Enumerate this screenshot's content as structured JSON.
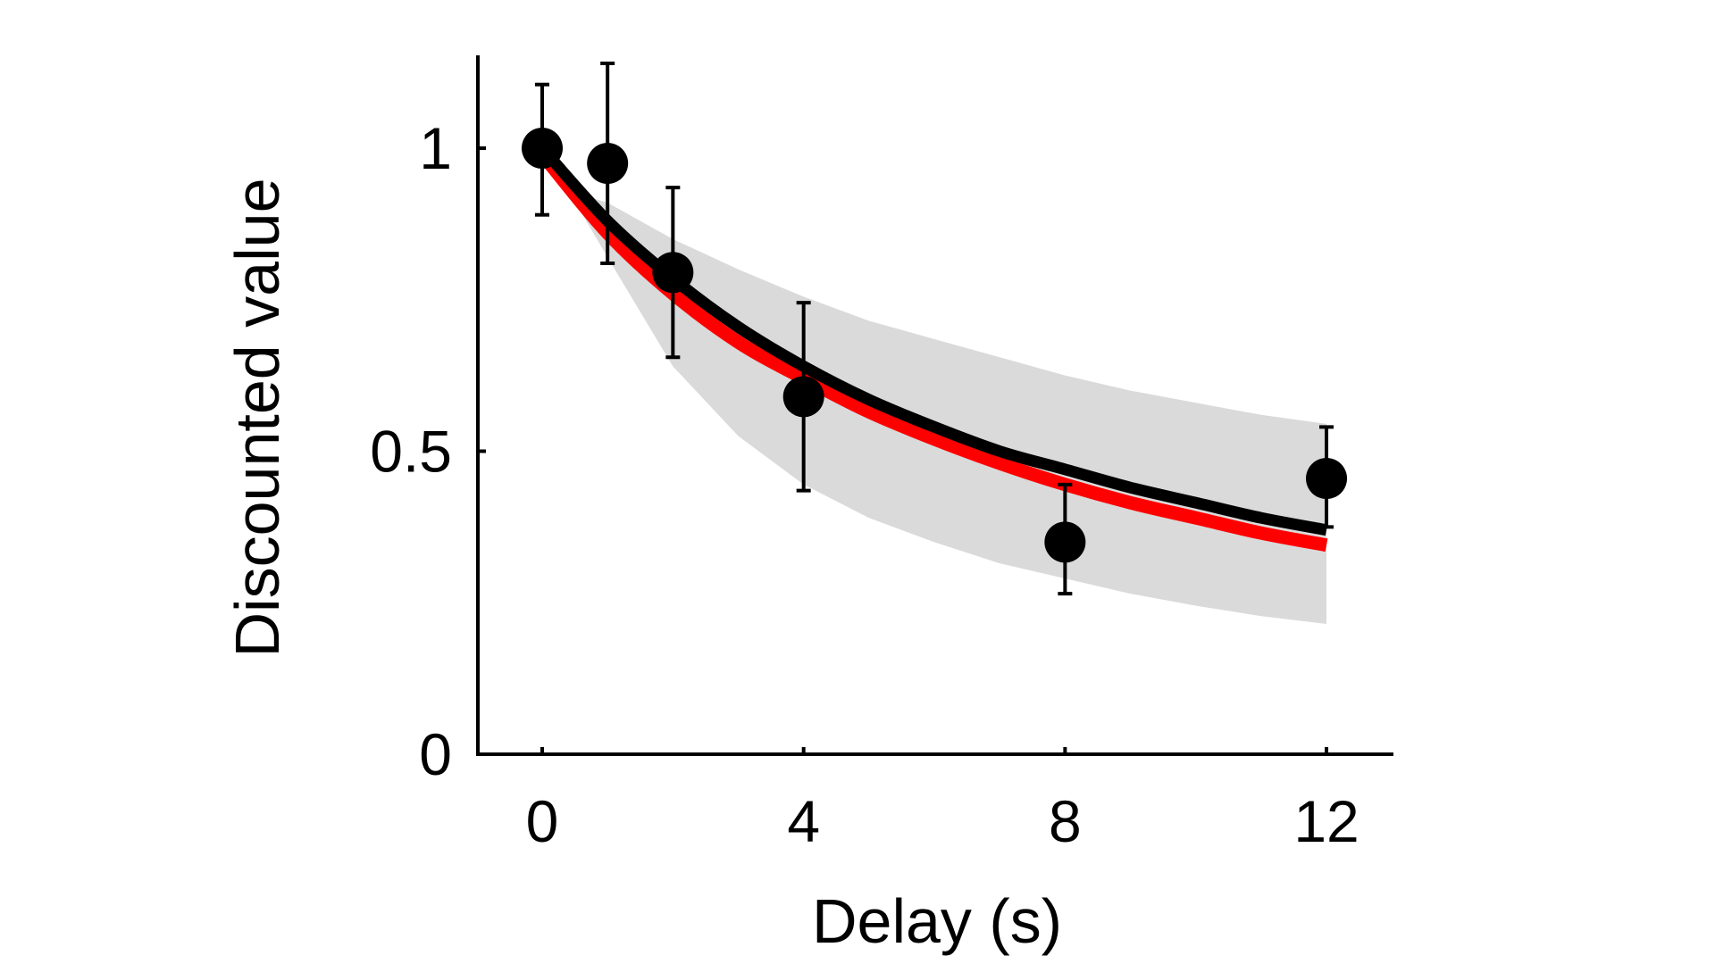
{
  "chart_data": {
    "type": "scatter",
    "title": "",
    "xlabel": "Delay (s)",
    "ylabel": "Discounted value",
    "xlim": [
      -1,
      13
    ],
    "ylim": [
      0,
      1.15
    ],
    "xticks": [
      0,
      4,
      8,
      12
    ],
    "xtick_labels": [
      "0",
      "4",
      "8",
      "12"
    ],
    "yticks": [
      0,
      0.5,
      1
    ],
    "ytick_labels": [
      "0",
      "0.5",
      "1"
    ],
    "grid": false,
    "legend": "none",
    "series": [
      {
        "kind": "points_with_error_bars",
        "color": "#000000",
        "points": [
          {
            "x": 0,
            "y": 1.0,
            "err_low": 0.89,
            "err_high": 1.105
          },
          {
            "x": 1,
            "y": 0.975,
            "err_low": 0.81,
            "err_high": 1.14
          },
          {
            "x": 2,
            "y": 0.795,
            "err_low": 0.655,
            "err_high": 0.935
          },
          {
            "x": 4,
            "y": 0.59,
            "err_low": 0.435,
            "err_high": 0.745
          },
          {
            "x": 8,
            "y": 0.35,
            "err_low": 0.265,
            "err_high": 0.445
          },
          {
            "x": 12,
            "y": 0.455,
            "err_low": 0.375,
            "err_high": 0.54
          }
        ]
      },
      {
        "kind": "fit_line",
        "color": "#000000",
        "x": [
          0,
          1,
          2,
          3,
          4,
          5,
          6,
          7,
          8,
          9,
          10,
          11,
          12
        ],
        "y": [
          1.0,
          0.88,
          0.785,
          0.705,
          0.64,
          0.585,
          0.54,
          0.5,
          0.47,
          0.44,
          0.415,
          0.39,
          0.37
        ]
      },
      {
        "kind": "fit_line",
        "color": "#ff0000",
        "x": [
          0,
          1,
          2,
          3,
          4,
          5,
          6,
          7,
          8,
          9,
          10,
          11,
          12
        ],
        "y": [
          0.99,
          0.86,
          0.76,
          0.68,
          0.62,
          0.565,
          0.52,
          0.48,
          0.445,
          0.415,
          0.39,
          0.365,
          0.345
        ]
      },
      {
        "kind": "confidence_band",
        "color": "#dadada",
        "x": [
          0.4,
          1,
          2,
          3,
          4,
          5,
          6,
          7,
          8,
          9,
          10,
          11,
          12
        ],
        "lower": [
          0.93,
          0.82,
          0.64,
          0.525,
          0.445,
          0.39,
          0.35,
          0.315,
          0.29,
          0.265,
          0.245,
          0.228,
          0.215
        ],
        "upper": [
          0.93,
          0.91,
          0.85,
          0.8,
          0.755,
          0.715,
          0.685,
          0.655,
          0.625,
          0.6,
          0.58,
          0.56,
          0.545
        ]
      }
    ]
  }
}
